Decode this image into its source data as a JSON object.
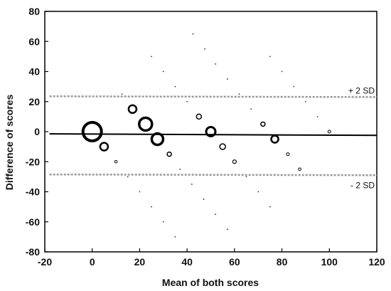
{
  "chart_data": {
    "type": "scatter",
    "title": "",
    "xlabel": "Mean of both scores",
    "ylabel": "Difference of scores",
    "xlim": [
      -20,
      120
    ],
    "ylim": [
      -80,
      80
    ],
    "x_ticks": [
      "-20",
      "0",
      "20",
      "40",
      "60",
      "80",
      "100",
      "120"
    ],
    "y_ticks": [
      "80",
      "60",
      "40",
      "20",
      "0",
      "-20",
      "-40",
      "-60",
      "-80"
    ],
    "grid": false,
    "mean_line": {
      "y_start": -1.5,
      "y_end": -2.5
    },
    "upper_limit": {
      "label": "+ 2 SD",
      "y_start": 23.5,
      "y_end": 23
    },
    "lower_limit": {
      "label": "- 2 SD",
      "y_start": -28.5,
      "y_end": -29
    },
    "points": [
      {
        "x": 0,
        "y": 0,
        "r": 13,
        "w": 4
      },
      {
        "x": 5,
        "y": -10,
        "r": 5.5,
        "w": 2.5
      },
      {
        "x": 10,
        "y": -20,
        "r": 1.8,
        "w": 1
      },
      {
        "x": 17,
        "y": 15,
        "r": 5.5,
        "w": 2.5
      },
      {
        "x": 22.5,
        "y": 5,
        "r": 9,
        "w": 3.5
      },
      {
        "x": 27.5,
        "y": -5,
        "r": 8,
        "w": 3.5
      },
      {
        "x": 32.5,
        "y": -15,
        "r": 3,
        "w": 1.5
      },
      {
        "x": 45,
        "y": 10,
        "r": 3.5,
        "w": 1.5
      },
      {
        "x": 50,
        "y": 0,
        "r": 6.5,
        "w": 3
      },
      {
        "x": 55,
        "y": -10,
        "r": 4,
        "w": 1.5
      },
      {
        "x": 60,
        "y": -20,
        "r": 2.5,
        "w": 1.2
      },
      {
        "x": 72,
        "y": 5,
        "r": 3,
        "w": 1.5
      },
      {
        "x": 77,
        "y": -5,
        "r": 5,
        "w": 2.5
      },
      {
        "x": 82.5,
        "y": -15,
        "r": 2,
        "w": 1
      },
      {
        "x": 87.5,
        "y": -25,
        "r": 1.8,
        "w": 1
      },
      {
        "x": 100,
        "y": 0,
        "r": 2,
        "w": 1
      },
      {
        "x": 37,
        "y": -25,
        "r": 0.8,
        "w": 1
      },
      {
        "x": 40,
        "y": 20,
        "r": 0.8,
        "w": 1
      },
      {
        "x": 65,
        "y": -30,
        "r": 0.8,
        "w": 1
      },
      {
        "x": 67,
        "y": 15,
        "r": 0.8,
        "w": 1
      },
      {
        "x": 42.5,
        "y": 65,
        "r": 0.5,
        "w": 1
      },
      {
        "x": 47.5,
        "y": 55,
        "r": 0.5,
        "w": 1
      },
      {
        "x": 52,
        "y": 45,
        "r": 0.5,
        "w": 1
      },
      {
        "x": 57,
        "y": 35,
        "r": 0.5,
        "w": 1
      },
      {
        "x": 62,
        "y": 25,
        "r": 0.5,
        "w": 1
      },
      {
        "x": 25,
        "y": 50,
        "r": 0.5,
        "w": 1
      },
      {
        "x": 30,
        "y": 40,
        "r": 0.5,
        "w": 1
      },
      {
        "x": 35,
        "y": 30,
        "r": 0.5,
        "w": 1
      },
      {
        "x": 12.5,
        "y": 25,
        "r": 0.5,
        "w": 1
      },
      {
        "x": 75,
        "y": 50,
        "r": 0.5,
        "w": 1
      },
      {
        "x": 80,
        "y": 40,
        "r": 0.5,
        "w": 1
      },
      {
        "x": 85,
        "y": 30,
        "r": 0.5,
        "w": 1
      },
      {
        "x": 90,
        "y": 20,
        "r": 0.5,
        "w": 1
      },
      {
        "x": 95,
        "y": 10,
        "r": 0.5,
        "w": 1
      },
      {
        "x": 15,
        "y": -30,
        "r": 0.5,
        "w": 1
      },
      {
        "x": 20,
        "y": -40,
        "r": 0.5,
        "w": 1
      },
      {
        "x": 25,
        "y": -50,
        "r": 0.5,
        "w": 1
      },
      {
        "x": 30,
        "y": -60,
        "r": 0.5,
        "w": 1
      },
      {
        "x": 35,
        "y": -70,
        "r": 0.5,
        "w": 1
      },
      {
        "x": 42,
        "y": -35,
        "r": 0.5,
        "w": 1
      },
      {
        "x": 47,
        "y": -45,
        "r": 0.5,
        "w": 1
      },
      {
        "x": 52,
        "y": -55,
        "r": 0.5,
        "w": 1
      },
      {
        "x": 57,
        "y": -65,
        "r": 0.5,
        "w": 1
      },
      {
        "x": 70,
        "y": -40,
        "r": 0.5,
        "w": 1
      },
      {
        "x": 75,
        "y": -50,
        "r": 0.5,
        "w": 1
      }
    ]
  }
}
